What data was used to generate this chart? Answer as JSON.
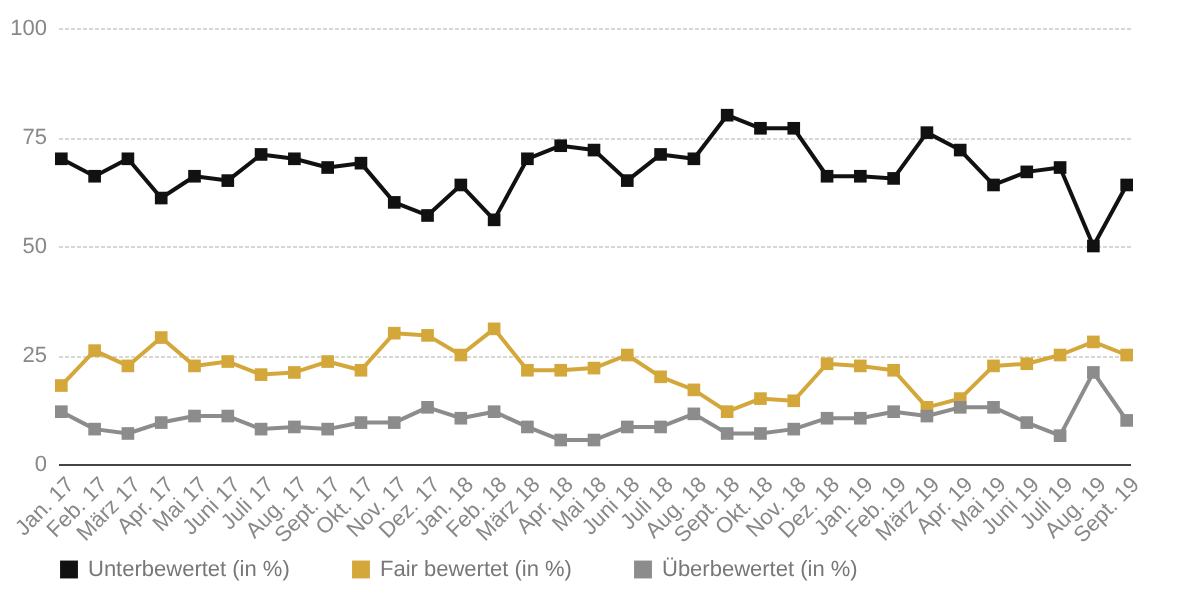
{
  "chart_data": {
    "type": "line",
    "categories": [
      "Jan. 17",
      "Feb. 17",
      "März 17",
      "Apr. 17",
      "Mai 17",
      "Juni 17",
      "Juli 17",
      "Aug. 17",
      "Sept. 17",
      "Okt. 17",
      "Nov. 17",
      "Dez. 17",
      "Jan. 18",
      "Feb. 18",
      "März 18",
      "Apr. 18",
      "Mai 18",
      "Juni 18",
      "Juli 18",
      "Aug. 18",
      "Sept. 18",
      "Okt. 18",
      "Nov. 18",
      "Dez. 18",
      "Jan. 19",
      "Feb. 19",
      "März 19",
      "Apr. 19",
      "Mai 19",
      "Juni 19",
      "Juli 19",
      "Aug. 19",
      "Sept. 19"
    ],
    "series": [
      {
        "name": "Unterbewertet (in %)",
        "color": "#111111",
        "values": [
          70,
          66,
          70,
          61,
          66,
          65,
          71,
          70,
          68,
          69,
          60,
          57,
          64,
          56,
          70,
          73,
          72,
          65,
          71,
          70,
          80,
          77,
          77,
          66,
          66,
          65.5,
          76,
          72,
          64,
          67,
          68,
          50,
          64
        ]
      },
      {
        "name": "Fair bewertet (in %)",
        "color": "#d4a73a",
        "values": [
          18,
          26,
          22.5,
          29,
          22.5,
          23.5,
          20.5,
          21,
          23.5,
          21.5,
          30,
          29.5,
          25,
          31,
          21.5,
          21.5,
          22,
          25,
          20,
          17,
          12,
          15,
          14.5,
          23,
          22.5,
          21.5,
          13,
          15,
          22.5,
          23,
          25,
          28,
          25
        ]
      },
      {
        "name": "Überbewertet (in %)",
        "color": "#8c8c8c",
        "values": [
          12,
          8,
          7,
          9.5,
          11,
          11,
          8,
          8.5,
          8,
          9.5,
          9.5,
          13,
          10.5,
          12,
          8.5,
          5.5,
          5.5,
          8.5,
          8.5,
          11.5,
          7,
          7,
          8,
          10.5,
          10.5,
          12,
          11,
          13,
          13,
          9.5,
          6.5,
          21,
          10
        ]
      }
    ],
    "ylim": [
      0,
      100
    ],
    "yticks": [
      0,
      25,
      50,
      75,
      100
    ],
    "grid": "y",
    "legend": "bottom",
    "marker": "square",
    "line_style": "solid"
  }
}
